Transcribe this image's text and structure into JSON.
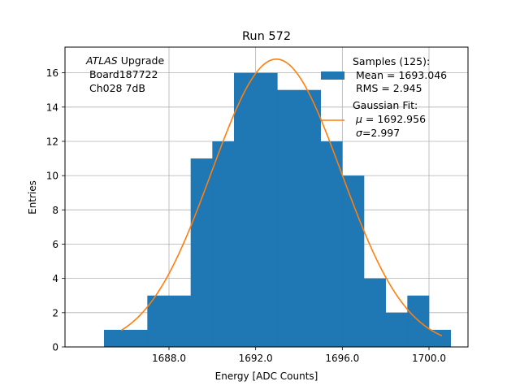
{
  "chart_data": {
    "type": "histogram",
    "title": "Run 572",
    "xlabel": "Energy [ADC Counts]",
    "ylabel": "Entries",
    "xlim": [
      1683.2,
      1701.8
    ],
    "ylim": [
      0,
      17.5
    ],
    "xticks": [
      1688.0,
      1692.0,
      1696.0,
      1700.0
    ],
    "xtick_labels": [
      "1688.0",
      "1692.0",
      "1696.0",
      "1700.0"
    ],
    "yticks": [
      0,
      2,
      4,
      6,
      8,
      10,
      12,
      14,
      16
    ],
    "ytick_labels": [
      "0",
      "2",
      "4",
      "6",
      "8",
      "10",
      "12",
      "14",
      "16"
    ],
    "grid": true,
    "bins": [
      {
        "x0": 1685.0,
        "x1": 1686.0,
        "count": 1
      },
      {
        "x0": 1686.0,
        "x1": 1687.0,
        "count": 1
      },
      {
        "x0": 1687.0,
        "x1": 1688.0,
        "count": 3
      },
      {
        "x0": 1688.0,
        "x1": 1689.0,
        "count": 3
      },
      {
        "x0": 1689.0,
        "x1": 1690.0,
        "count": 11
      },
      {
        "x0": 1690.0,
        "x1": 1691.0,
        "count": 12
      },
      {
        "x0": 1691.0,
        "x1": 1692.0,
        "count": 16
      },
      {
        "x0": 1692.0,
        "x1": 1693.0,
        "count": 16
      },
      {
        "x0": 1693.0,
        "x1": 1694.0,
        "count": 15
      },
      {
        "x0": 1694.0,
        "x1": 1695.0,
        "count": 15
      },
      {
        "x0": 1695.0,
        "x1": 1696.0,
        "count": 12
      },
      {
        "x0": 1696.0,
        "x1": 1697.0,
        "count": 10
      },
      {
        "x0": 1697.0,
        "x1": 1698.0,
        "count": 4
      },
      {
        "x0": 1698.0,
        "x1": 1699.0,
        "count": 2
      },
      {
        "x0": 1699.0,
        "x1": 1700.0,
        "count": 3
      },
      {
        "x0": 1700.0,
        "x1": 1701.0,
        "count": 1
      }
    ],
    "gaussian_fit": {
      "amplitude": 16.8,
      "mu": 1692.956,
      "sigma": 2.997,
      "x_range": [
        1685.8,
        1700.6
      ]
    },
    "histogram_color": "#1f77b4",
    "fit_color": "#ff7f0e",
    "annotation": {
      "atlas": "ATLAS",
      "upgrade": " Upgrade",
      "line2": " Board187722",
      "line3": " Ch028 7dB"
    },
    "legend": {
      "position": "top-right",
      "samples_line1": "Samples (125):",
      "samples_line2": " Mean = 1693.046",
      "samples_line3": " RMS = 2.945",
      "fit_line1": "Gaussian Fit:",
      "fit_mu_symbol": "μ",
      "fit_mu_value": " = 1692.956",
      "fit_sigma_symbol": "σ",
      "fit_sigma_value": "=2.997"
    }
  }
}
